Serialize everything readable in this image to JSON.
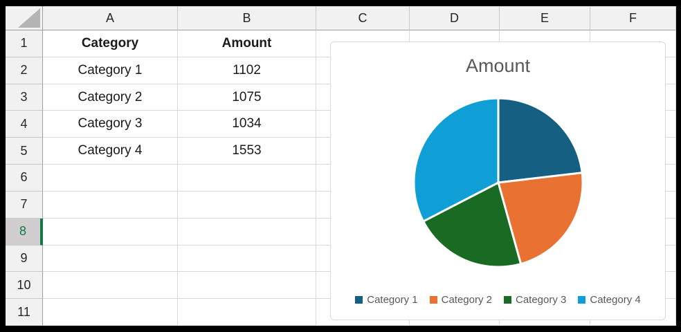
{
  "sheet": {
    "column_headers": [
      "A",
      "B",
      "C",
      "D",
      "E",
      "F"
    ],
    "row_headers": [
      "1",
      "2",
      "3",
      "4",
      "5",
      "6",
      "7",
      "8",
      "9",
      "10",
      "11"
    ],
    "selected_row": "8",
    "cells": [
      [
        "Category",
        "Amount",
        "",
        "",
        "",
        ""
      ],
      [
        "Category 1",
        "1102",
        "",
        "",
        "",
        ""
      ],
      [
        "Category 2",
        "1075",
        "",
        "",
        "",
        ""
      ],
      [
        "Category 3",
        "1034",
        "",
        "",
        "",
        ""
      ],
      [
        "Category 4",
        "1553",
        "",
        "",
        "",
        ""
      ],
      [
        "",
        "",
        "",
        "",
        "",
        ""
      ],
      [
        "",
        "",
        "",
        "",
        "",
        ""
      ],
      [
        "",
        "",
        "",
        "",
        "",
        ""
      ],
      [
        "",
        "",
        "",
        "",
        "",
        ""
      ],
      [
        "",
        "",
        "",
        "",
        "",
        ""
      ],
      [
        "",
        "",
        "",
        "",
        "",
        ""
      ]
    ],
    "bold_rows": [
      0
    ]
  },
  "chart_data": {
    "type": "pie",
    "title": "Amount",
    "categories": [
      "Category 1",
      "Category 2",
      "Category 3",
      "Category 4"
    ],
    "values": [
      1102,
      1075,
      1034,
      1553
    ],
    "colors": [
      "#156082",
      "#E97132",
      "#196B24",
      "#0F9ED5"
    ],
    "legend_position": "bottom",
    "start_angle_deg": 0,
    "direction": "clockwise"
  },
  "colors": {
    "selected_row_green": "#107C41",
    "selected_row_header_bg": "#D0CECE",
    "chart_text_gray": "#595959",
    "header_bg": "#F1F1F1",
    "gridline": "#D9D9D9"
  }
}
